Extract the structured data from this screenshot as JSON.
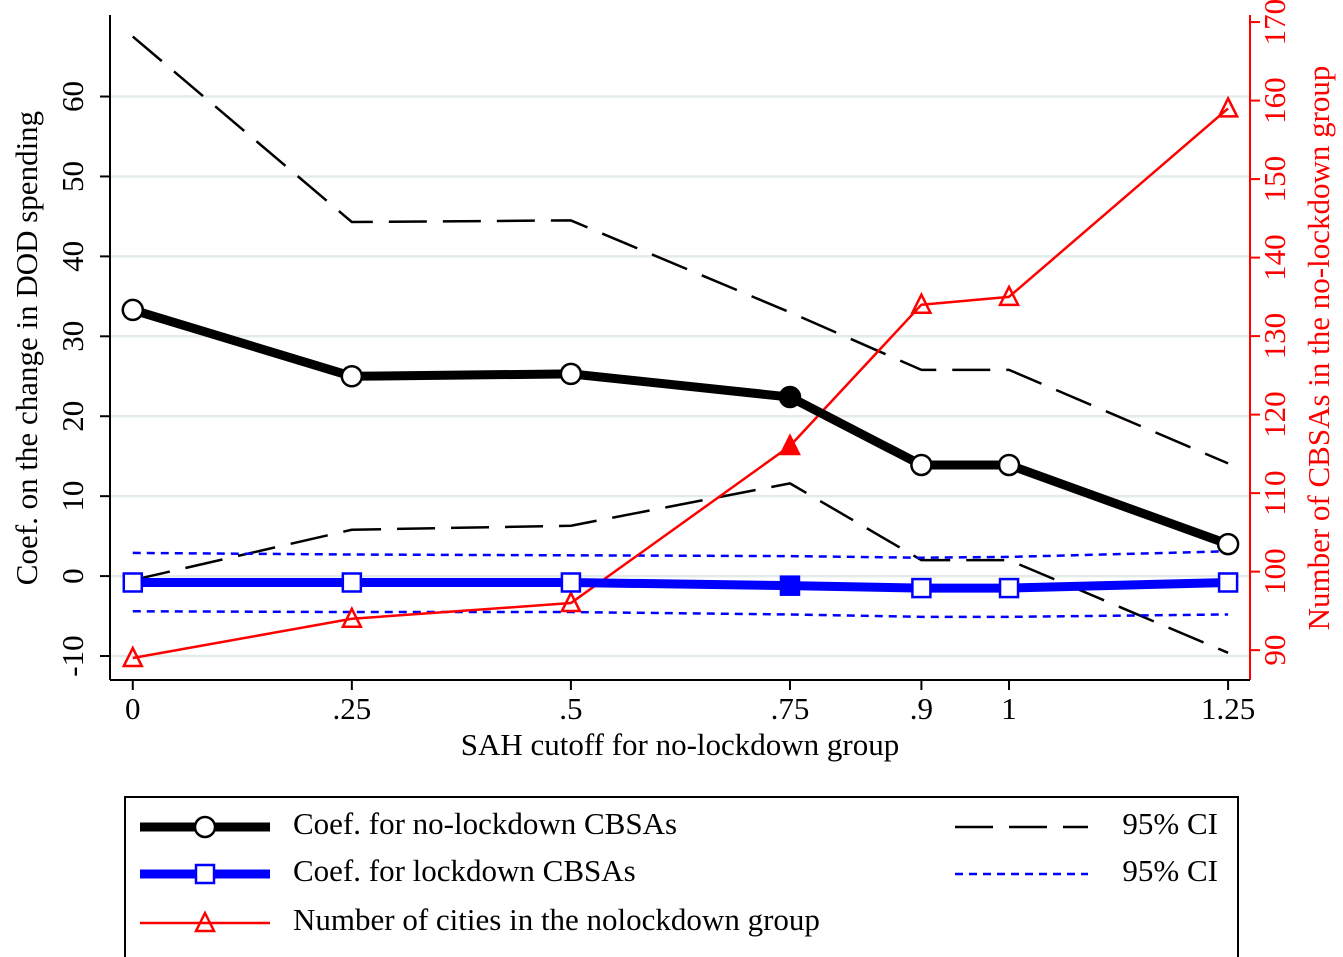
{
  "chart_data": {
    "type": "line",
    "x_label": "SAH cutoff for no-lockdown group",
    "y_label": "Coef. on the change in DOD spending",
    "y2_label": "Number of CBSAs in the no-lockdown group",
    "x": [
      0,
      0.25,
      0.5,
      0.75,
      0.9,
      1,
      1.25
    ],
    "xlim": [
      -0.026,
      1.275
    ],
    "xticks": [
      0,
      {
        "value": 0.25,
        "label": ".25"
      },
      {
        "value": 0.5,
        "label": ".5"
      },
      {
        "value": 0.75,
        "label": ".75"
      },
      {
        "value": 0.9,
        "label": ".9"
      },
      1,
      1.25
    ],
    "ylim": [
      -13,
      70.2
    ],
    "yticks": [
      -10,
      0,
      10,
      20,
      30,
      40,
      50,
      60
    ],
    "y2lim": [
      86.2,
      170.9
    ],
    "y2ticks": [
      90,
      100,
      110,
      120,
      130,
      140,
      150,
      160,
      170
    ],
    "grid": true,
    "y2_color": "#ff0000",
    "series": [
      {
        "name": "Coef. for no-lockdown CBSAs",
        "color": "#000000",
        "width": 9,
        "marker": "circle",
        "filled": [
          false,
          false,
          false,
          true,
          false,
          false,
          false
        ],
        "values": [
          33.3,
          25,
          25.3,
          22.4,
          13.9,
          13.9,
          4.0
        ]
      },
      {
        "name": "Coef. for lockdown CBSAs",
        "color": "#0000ff",
        "width": 9,
        "marker": "square",
        "filled": [
          false,
          false,
          false,
          true,
          false,
          false,
          false
        ],
        "values": [
          -0.8,
          -0.8,
          -0.8,
          -1.2,
          -1.5,
          -1.5,
          -0.8
        ]
      },
      {
        "name": "Number of cities in the nolockdown group",
        "color": "#ff0000",
        "width": 2.5,
        "marker": "triangle",
        "axis": "y2",
        "filled": [
          false,
          false,
          false,
          true,
          false,
          false,
          false
        ],
        "values": [
          89,
          94,
          96,
          116,
          134,
          135,
          159
        ]
      },
      {
        "name": "95% CI",
        "color": "#000000",
        "width": 2.5,
        "dash": "long",
        "low": [
          -0.5,
          5.8,
          6.3,
          11.6,
          2.0,
          2.0,
          -9.6
        ],
        "high": [
          67.5,
          44.3,
          44.5,
          33,
          25.8,
          25.8,
          14.1
        ]
      },
      {
        "name": "95% CI",
        "color": "#0000ff",
        "width": 2.5,
        "dash": "short",
        "low": [
          -4.4,
          -4.5,
          -4.5,
          -4.8,
          -5.1,
          -5.1,
          -4.8
        ],
        "high": [
          2.9,
          2.7,
          2.6,
          2.5,
          2.3,
          2.4,
          3.1
        ]
      }
    ]
  }
}
